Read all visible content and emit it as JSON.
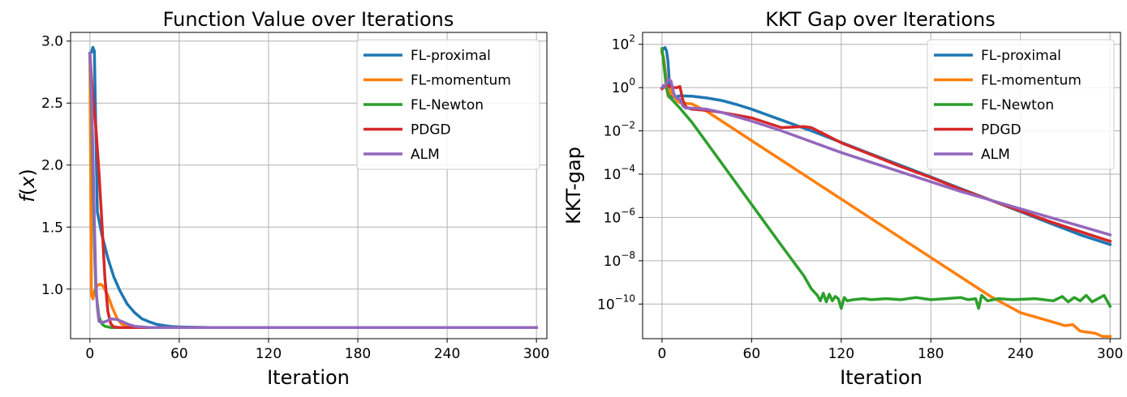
{
  "figure": {
    "colors": {
      "FL-proximal": "#1f77b4",
      "FL-momentum": "#ff7f0e",
      "FL-Newton": "#2ca02c",
      "PDGD": "#d62728",
      "ALM": "#9467bd"
    }
  },
  "chart_data": [
    {
      "type": "line",
      "title": "Function Value over Iterations",
      "xlabel": "Iteration",
      "ylabel": "f(x)",
      "xlim": [
        -13,
        307
      ],
      "ylim": [
        0.6,
        3.07
      ],
      "yscale": "linear",
      "grid": true,
      "legend_position": "top-right",
      "xticks": [
        0,
        60,
        120,
        180,
        240,
        300
      ],
      "xtick_labels": [
        "0",
        "60",
        "120",
        "180",
        "240",
        "300"
      ],
      "yticks": [
        1.0,
        1.5,
        2.0,
        2.5,
        3.0
      ],
      "ytick_labels": [
        "1.0",
        "1.5",
        "2.0",
        "2.5",
        "3.0"
      ],
      "series": [
        {
          "name": "FL-proximal",
          "x": [
            0,
            1,
            2,
            3,
            5,
            8,
            12,
            16,
            20,
            25,
            30,
            35,
            40,
            45,
            50,
            55,
            60,
            65,
            70,
            80,
            300
          ],
          "y": [
            2.9,
            2.91,
            2.95,
            2.92,
            1.62,
            1.44,
            1.25,
            1.1,
            0.99,
            0.88,
            0.81,
            0.76,
            0.735,
            0.715,
            0.705,
            0.698,
            0.695,
            0.693,
            0.692,
            0.69,
            0.69
          ]
        },
        {
          "name": "FL-momentum",
          "x": [
            0,
            1,
            2,
            3,
            5,
            7,
            9,
            12,
            15,
            18,
            21,
            25,
            30,
            300
          ],
          "y": [
            2.9,
            0.95,
            0.92,
            0.98,
            1.03,
            1.04,
            1.02,
            0.95,
            0.85,
            0.77,
            0.72,
            0.7,
            0.69,
            0.69
          ]
        },
        {
          "name": "FL-Newton",
          "x": [
            0,
            1,
            2,
            3,
            4,
            6,
            8,
            10,
            14,
            20,
            300
          ],
          "y": [
            2.9,
            2.5,
            1.9,
            1.35,
            0.98,
            0.78,
            0.72,
            0.7,
            0.69,
            0.69,
            0.69
          ]
        },
        {
          "name": "PDGD",
          "x": [
            0,
            2,
            4,
            6,
            8,
            10,
            12,
            14,
            16,
            20,
            300
          ],
          "y": [
            2.9,
            2.55,
            2.3,
            1.95,
            1.55,
            1.1,
            0.82,
            0.72,
            0.695,
            0.69,
            0.69
          ]
        },
        {
          "name": "ALM",
          "x": [
            0,
            1,
            2,
            3,
            4,
            5,
            6,
            8,
            11,
            14,
            18,
            22,
            26,
            30,
            40,
            300
          ],
          "y": [
            2.9,
            2.6,
            2.1,
            1.55,
            1.05,
            0.85,
            0.74,
            0.73,
            0.74,
            0.76,
            0.755,
            0.735,
            0.715,
            0.7,
            0.69,
            0.69
          ]
        }
      ]
    },
    {
      "type": "line",
      "title": "KKT Gap over Iterations",
      "xlabel": "Iteration",
      "ylabel": "KKT-gap",
      "xlim": [
        -13,
        307
      ],
      "ylim": [
        -11.6,
        2.55
      ],
      "yscale": "log10",
      "grid": true,
      "legend_position": "top-right",
      "xticks": [
        0,
        60,
        120,
        180,
        240,
        300
      ],
      "xtick_labels": [
        "0",
        "60",
        "120",
        "180",
        "240",
        "300"
      ],
      "yticks": [
        2,
        0,
        -2,
        -4,
        -6,
        -8,
        -10
      ],
      "ytick_labels": [
        {
          "base": "10",
          "exp": "2"
        },
        {
          "base": "10",
          "exp": "0"
        },
        {
          "base": "10",
          "exp": "−2"
        },
        {
          "base": "10",
          "exp": "−4"
        },
        {
          "base": "10",
          "exp": "−6"
        },
        {
          "base": "10",
          "exp": "−8"
        },
        {
          "base": "10",
          "exp": "−10"
        }
      ],
      "series": [
        {
          "name": "FL-proximal",
          "x": [
            0,
            1,
            2,
            3,
            4,
            5,
            6,
            8,
            12,
            20,
            30,
            40,
            50,
            60,
            70,
            80,
            100,
            120,
            140,
            160,
            180,
            200,
            220,
            240,
            260,
            280,
            300
          ],
          "y": [
            1.7,
            1.8,
            1.85,
            1.7,
            1.2,
            0.2,
            -0.35,
            -0.45,
            -0.38,
            -0.4,
            -0.48,
            -0.6,
            -0.78,
            -1.0,
            -1.25,
            -1.5,
            -2.0,
            -2.53,
            -3.07,
            -3.6,
            -4.13,
            -4.67,
            -5.2,
            -5.73,
            -6.27,
            -6.8,
            -7.25
          ]
        },
        {
          "name": "FL-momentum",
          "x": [
            0,
            1,
            2,
            3,
            4,
            5,
            6,
            7,
            8,
            10,
            12,
            20,
            30,
            40,
            60,
            80,
            100,
            120,
            140,
            160,
            180,
            200,
            220,
            240,
            260,
            270,
            275,
            280,
            285,
            290,
            295,
            300
          ],
          "y": [
            1.6,
            1.4,
            0.9,
            0.3,
            -0.4,
            -0.35,
            0.0,
            -0.3,
            -0.4,
            -0.6,
            -0.7,
            -0.75,
            -1.1,
            -1.55,
            -2.45,
            -3.35,
            -4.25,
            -5.15,
            -6.05,
            -6.95,
            -7.85,
            -8.75,
            -9.65,
            -10.4,
            -10.8,
            -11.0,
            -10.95,
            -11.25,
            -11.3,
            -11.35,
            -11.5,
            -11.5
          ]
        },
        {
          "name": "FL-Newton",
          "x": [
            0,
            1,
            2,
            3,
            4,
            5,
            6,
            8,
            12,
            20,
            40,
            60,
            80,
            95,
            100,
            104,
            106,
            108,
            110,
            112,
            114,
            116,
            118,
            120,
            122,
            124,
            128,
            135,
            140,
            150,
            160,
            170,
            180,
            190,
            200,
            205,
            210,
            212,
            214,
            218,
            225,
            235,
            250,
            262,
            268,
            272,
            276,
            280,
            284,
            288,
            292,
            296,
            300
          ],
          "y": [
            1.8,
            1.2,
            0.6,
            -0.05,
            -0.3,
            -0.45,
            -0.5,
            -0.65,
            -0.95,
            -1.6,
            -3.5,
            -5.4,
            -7.3,
            -8.7,
            -9.3,
            -9.6,
            -9.85,
            -9.5,
            -9.9,
            -9.55,
            -9.85,
            -9.65,
            -9.75,
            -10.2,
            -9.7,
            -9.85,
            -9.8,
            -9.75,
            -9.8,
            -9.75,
            -9.8,
            -9.7,
            -9.8,
            -9.75,
            -9.7,
            -9.8,
            -9.75,
            -10.2,
            -9.6,
            -9.85,
            -9.75,
            -9.8,
            -9.75,
            -9.85,
            -9.65,
            -9.9,
            -9.7,
            -9.85,
            -9.6,
            -9.9,
            -9.75,
            -9.6,
            -10.1
          ]
        },
        {
          "name": "PDGD",
          "x": [
            0,
            1,
            2,
            3,
            4,
            5,
            6,
            8,
            10,
            12,
            14,
            16,
            20,
            30,
            40,
            60,
            80,
            95,
            100,
            120,
            140,
            160,
            180,
            200,
            220,
            240,
            260,
            280,
            300
          ],
          "y": [
            -0.05,
            0.0,
            0.05,
            0.15,
            0.1,
            0.05,
            0.05,
            0.0,
            0.0,
            0.05,
            -0.6,
            -0.9,
            -1.0,
            -1.05,
            -1.15,
            -1.4,
            -1.85,
            -1.8,
            -1.85,
            -2.55,
            -3.1,
            -3.65,
            -4.15,
            -4.7,
            -5.2,
            -5.7,
            -6.2,
            -6.65,
            -7.1
          ]
        },
        {
          "name": "ALM",
          "x": [
            0,
            1,
            2,
            3,
            4,
            5,
            6,
            7,
            8,
            10,
            12,
            14,
            16,
            20,
            30,
            40,
            60,
            80,
            100,
            120,
            140,
            160,
            180,
            200,
            220,
            240,
            260,
            280,
            300
          ],
          "y": [
            0.0,
            0.1,
            0.05,
            0.2,
            0.4,
            0.35,
            0.3,
            0.0,
            -0.3,
            -0.5,
            -0.55,
            -0.85,
            -0.95,
            -0.95,
            -1.0,
            -1.15,
            -1.55,
            -2.0,
            -2.5,
            -3.0,
            -3.45,
            -3.9,
            -4.35,
            -4.8,
            -5.2,
            -5.6,
            -6.0,
            -6.4,
            -6.8
          ]
        }
      ]
    }
  ]
}
